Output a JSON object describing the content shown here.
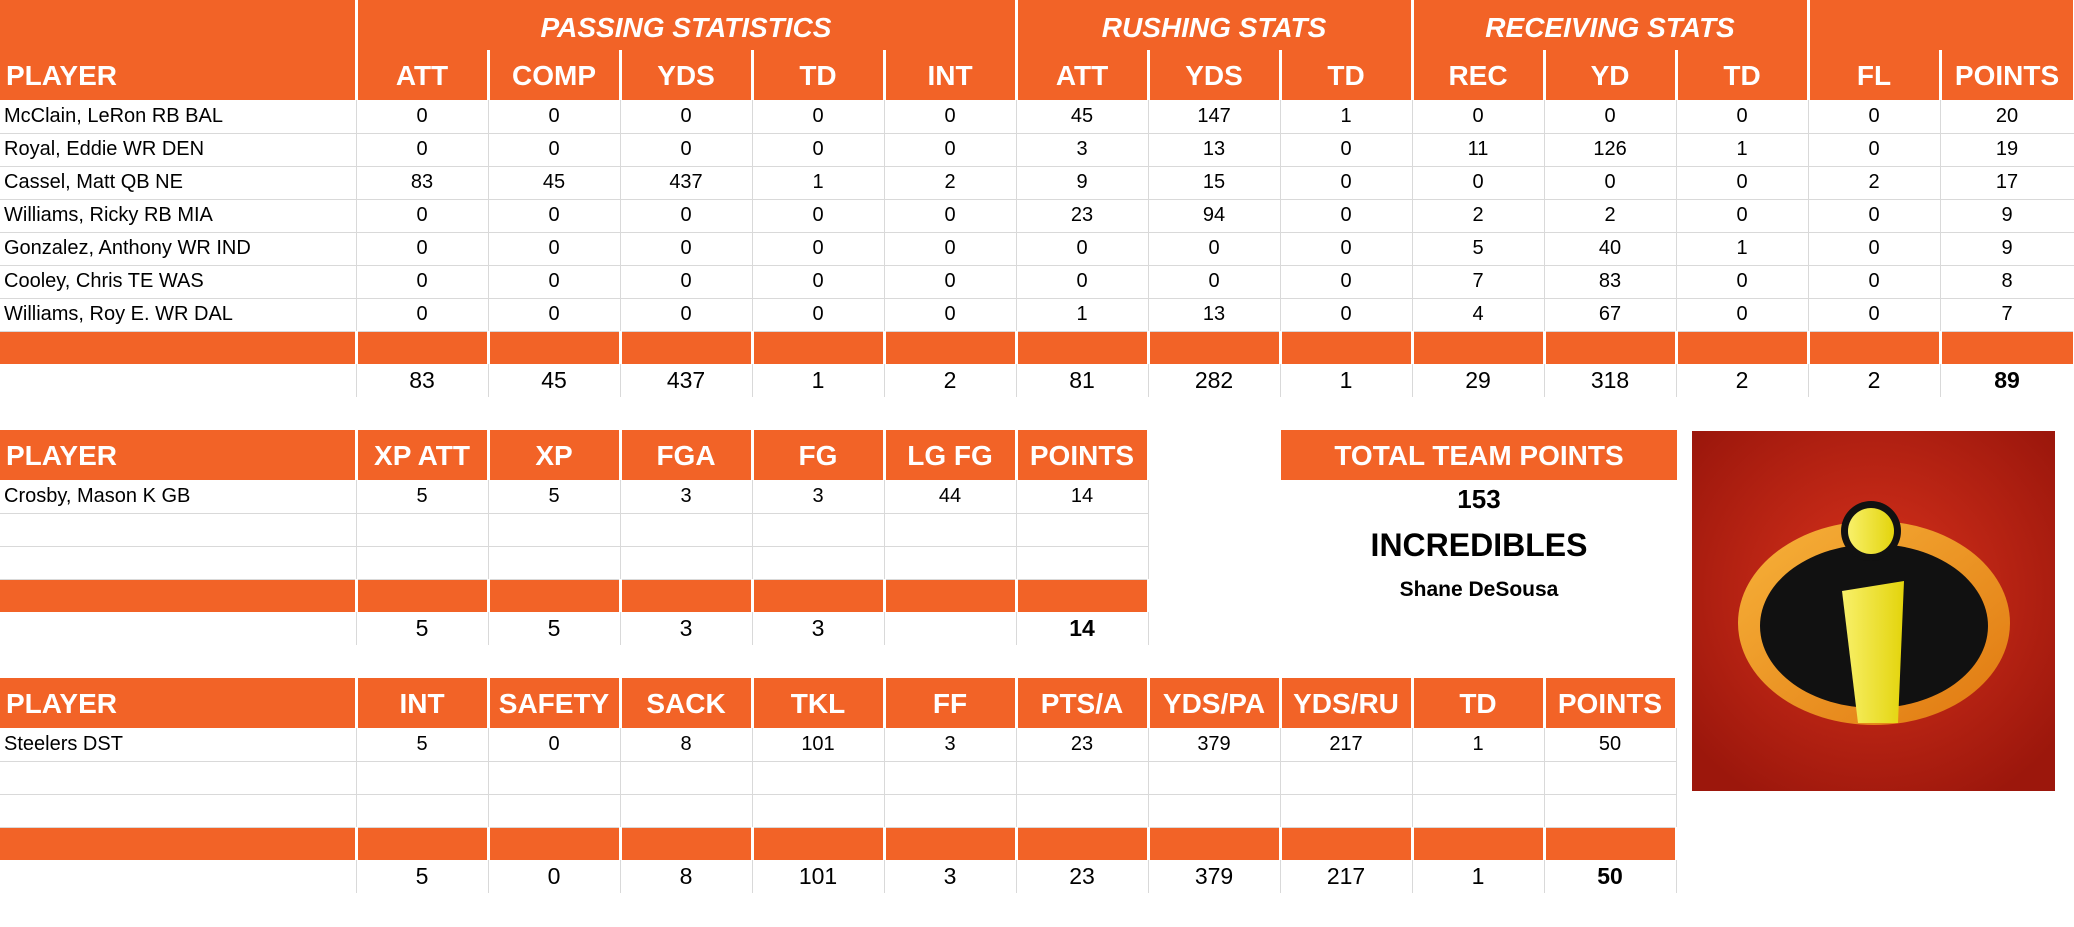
{
  "offense": {
    "groups": [
      "PASSING STATISTICS",
      "RUSHING STATS",
      "RECEIVING STATS"
    ],
    "headers": [
      "PLAYER",
      "ATT",
      "COMP",
      "YDS",
      "TD",
      "INT",
      "ATT",
      "YDS",
      "TD",
      "REC",
      "YD",
      "TD",
      "FL",
      "POINTS"
    ],
    "rows": [
      [
        "McClain, LeRon RB BAL",
        "0",
        "0",
        "0",
        "0",
        "0",
        "45",
        "147",
        "1",
        "0",
        "0",
        "0",
        "0",
        "20"
      ],
      [
        "Royal, Eddie WR DEN",
        "0",
        "0",
        "0",
        "0",
        "0",
        "3",
        "13",
        "0",
        "11",
        "126",
        "1",
        "0",
        "19"
      ],
      [
        "Cassel, Matt QB NE",
        "83",
        "45",
        "437",
        "1",
        "2",
        "9",
        "15",
        "0",
        "0",
        "0",
        "0",
        "2",
        "17"
      ],
      [
        "Williams, Ricky RB MIA",
        "0",
        "0",
        "0",
        "0",
        "0",
        "23",
        "94",
        "0",
        "2",
        "2",
        "0",
        "0",
        "9"
      ],
      [
        "Gonzalez, Anthony WR IND",
        "0",
        "0",
        "0",
        "0",
        "0",
        "0",
        "0",
        "0",
        "5",
        "40",
        "1",
        "0",
        "9"
      ],
      [
        "Cooley, Chris TE WAS",
        "0",
        "0",
        "0",
        "0",
        "0",
        "0",
        "0",
        "0",
        "7",
        "83",
        "0",
        "0",
        "8"
      ],
      [
        "Williams, Roy E. WR DAL",
        "0",
        "0",
        "0",
        "0",
        "0",
        "1",
        "13",
        "0",
        "4",
        "67",
        "0",
        "0",
        "7"
      ]
    ],
    "totals": [
      "",
      "83",
      "45",
      "437",
      "1",
      "2",
      "81",
      "282",
      "1",
      "29",
      "318",
      "2",
      "2",
      "89"
    ]
  },
  "kicker": {
    "headers": [
      "PLAYER",
      "XP ATT",
      "XP",
      "FGA",
      "FG",
      "LG FG",
      "POINTS"
    ],
    "rows": [
      [
        "Crosby, Mason K GB",
        "5",
        "5",
        "3",
        "3",
        "44",
        "14"
      ],
      [
        "",
        "",
        "",
        "",
        "",
        "",
        ""
      ],
      [
        "",
        "",
        "",
        "",
        "",
        "",
        ""
      ]
    ],
    "totals": [
      "",
      "5",
      "5",
      "3",
      "3",
      "",
      "14"
    ]
  },
  "defense": {
    "headers": [
      "PLAYER",
      "INT",
      "SAFETY",
      "SACK",
      "TKL",
      "FF",
      "PTS/A",
      "YDS/PA",
      "YDS/RU",
      "TD",
      "POINTS"
    ],
    "rows": [
      [
        "Steelers DST",
        "5",
        "0",
        "8",
        "101",
        "3",
        "23",
        "379",
        "217",
        "1",
        "50"
      ],
      [
        "",
        "",
        "",
        "",
        "",
        "",
        "",
        "",
        "",
        "",
        ""
      ],
      [
        "",
        "",
        "",
        "",
        "",
        "",
        "",
        "",
        "",
        "",
        ""
      ]
    ],
    "totals": [
      "",
      "5",
      "0",
      "8",
      "101",
      "3",
      "23",
      "379",
      "217",
      "1",
      "50"
    ]
  },
  "summary": {
    "title": "TOTAL TEAM POINTS",
    "points": "153",
    "team_name": "INCREDIBLES",
    "owner": "Shane DeSousa"
  },
  "logo": {
    "icon": "incredibles-logo-icon",
    "colors": {
      "background": "#b01e10",
      "ring": "#f39a1a",
      "inner": "#111111",
      "letter": "#f3ec1a"
    }
  }
}
